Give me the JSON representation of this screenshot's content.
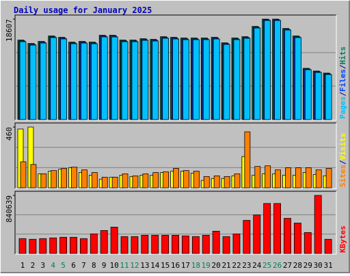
{
  "chart_data": [
    {
      "type": "bar",
      "title": "Daily usage for January 2025",
      "legend_separator": "/",
      "ylim": [
        0,
        18607
      ],
      "yticks": [
        18607
      ],
      "series": [
        {
          "name": "Hits",
          "color": "#00805c",
          "values": [
            14730,
            14100,
            14480,
            15490,
            15240,
            14350,
            14480,
            14350,
            15620,
            15620,
            14730,
            14730,
            14980,
            14860,
            15360,
            15240,
            15110,
            15110,
            15110,
            15240,
            14220,
            15110,
            15360,
            17260,
            18607,
            18607,
            16880,
            15490,
            9494,
            8990,
            8610
          ]
        },
        {
          "name": "Files",
          "color": "#0040ff",
          "values": [
            14580,
            13950,
            14330,
            15340,
            15090,
            14200,
            14330,
            14200,
            15470,
            15470,
            14580,
            14580,
            14830,
            14710,
            15210,
            15090,
            14960,
            14960,
            14960,
            15090,
            14070,
            14960,
            15210,
            17110,
            18500,
            18500,
            16730,
            15340,
            9370,
            8860,
            8480
          ]
        },
        {
          "name": "Pages",
          "color": "#00c0ff",
          "values": [
            14430,
            13797,
            14177,
            15190,
            14936,
            14050,
            14177,
            14050,
            15316,
            15316,
            14430,
            14430,
            14683,
            14557,
            15063,
            14936,
            14810,
            14810,
            14810,
            14936,
            13924,
            14810,
            15063,
            16962,
            18354,
            18354,
            16582,
            15190,
            9240,
            8734,
            8354
          ]
        }
      ]
    },
    {
      "type": "bar",
      "legend_separator": "/",
      "ylim": [
        0,
        460
      ],
      "yticks": [
        460
      ],
      "series": [
        {
          "name": "Visits",
          "color": "#ffff00",
          "values": [
            445,
            460,
            106,
            126,
            141,
            152,
            116,
            96,
            66,
            81,
            96,
            86,
            96,
            96,
            116,
            126,
            126,
            111,
            56,
            71,
            71,
            91,
            237,
            96,
            106,
            106,
            96,
            96,
            116,
            101,
            91
          ]
        },
        {
          "name": "Sites",
          "color": "#ff8000",
          "values": [
            197,
            177,
            106,
            131,
            147,
            157,
            136,
            116,
            81,
            81,
            106,
            91,
            106,
            116,
            121,
            147,
            131,
            126,
            86,
            91,
            86,
            106,
            424,
            162,
            167,
            136,
            152,
            152,
            152,
            136,
            147
          ]
        }
      ]
    },
    {
      "type": "bar",
      "ylim": [
        0,
        840639
      ],
      "yticks": [
        840639
      ],
      "categories": [
        "1",
        "2",
        "3",
        "4",
        "5",
        "6",
        "7",
        "8",
        "9",
        "10",
        "11",
        "12",
        "13",
        "14",
        "15",
        "16",
        "17",
        "18",
        "19",
        "20",
        "21",
        "22",
        "23",
        "24",
        "25",
        "26",
        "27",
        "28",
        "29",
        "30",
        "31"
      ],
      "category_label_colors": [
        "#000000",
        "#000000",
        "#000000",
        "#00805c",
        "#00805c",
        "#000000",
        "#000000",
        "#000000",
        "#000000",
        "#000000",
        "#00805c",
        "#00805c",
        "#000000",
        "#000000",
        "#000000",
        "#000000",
        "#000000",
        "#00805c",
        "#00805c",
        "#000000",
        "#000000",
        "#000000",
        "#000000",
        "#000000",
        "#00805c",
        "#00805c",
        "#000000",
        "#000000",
        "#000000",
        "#000000",
        "#000000"
      ],
      "series": [
        {
          "name": "KBytes",
          "color": "#ff0000",
          "values": [
            215050,
            205275,
            215050,
            224825,
            234600,
            234600,
            215050,
            283475,
            332350,
            381225,
            244375,
            244375,
            263925,
            263925,
            263925,
            263925,
            254150,
            244375,
            263925,
            322575,
            244375,
            283475,
            478975,
            557175,
            723350,
            723350,
            508300,
            439875,
            303025,
            840639,
            205275
          ]
        }
      ]
    }
  ]
}
